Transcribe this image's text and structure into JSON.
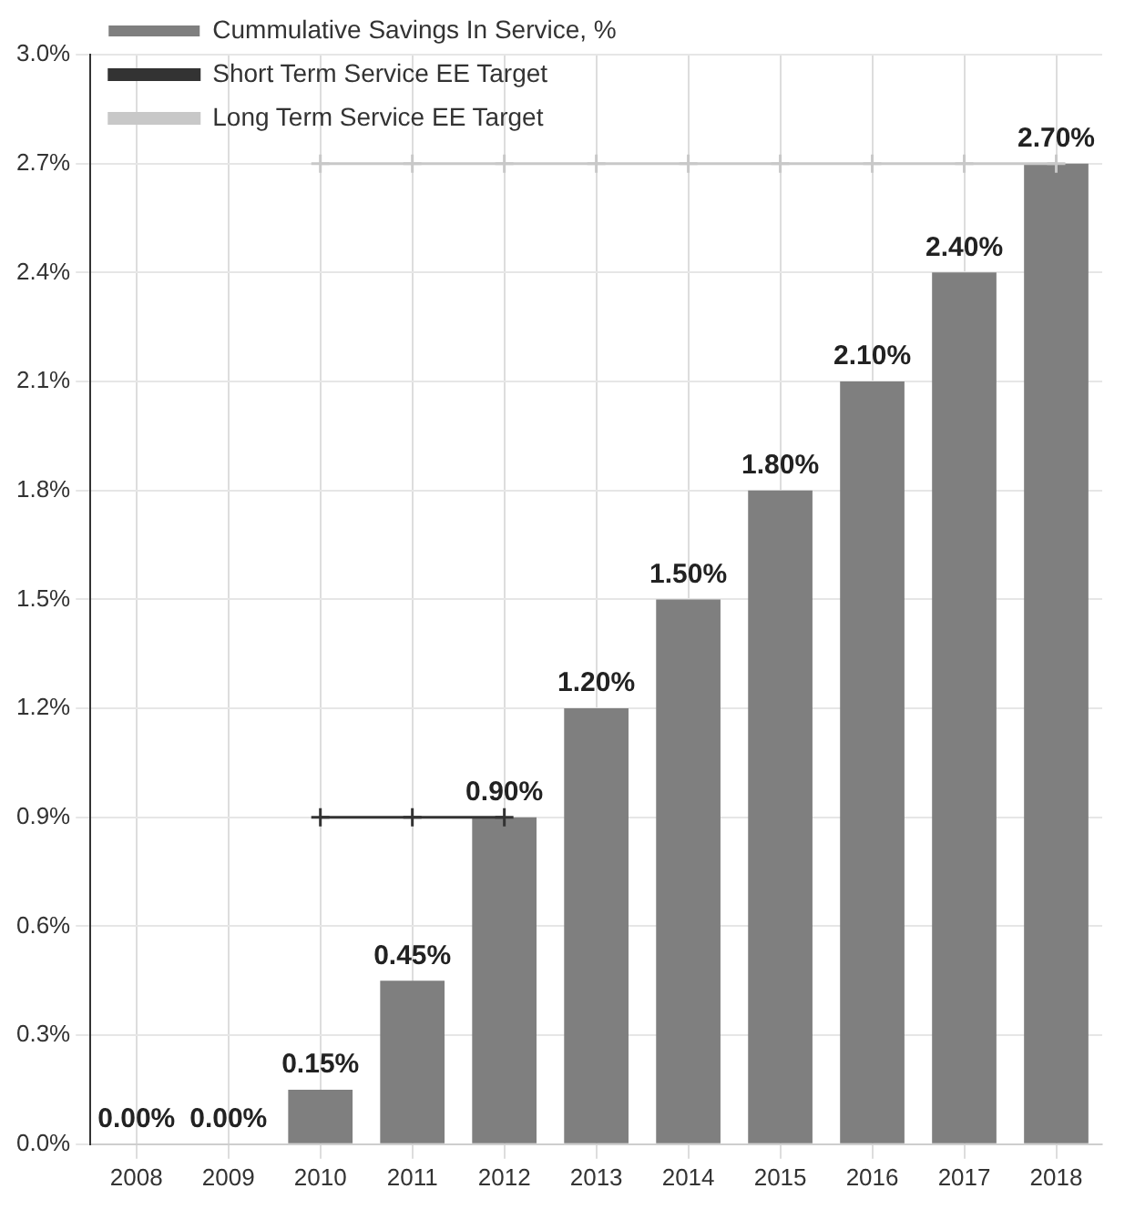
{
  "chart_data": {
    "type": "bar",
    "categories": [
      "2008",
      "2009",
      "2010",
      "2011",
      "2012",
      "2013",
      "2014",
      "2015",
      "2016",
      "2017",
      "2018"
    ],
    "series": [
      {
        "name": "Cummulative Savings In Service, %",
        "color": "#7f7f7f",
        "values": [
          0,
          0,
          0.15,
          0.45,
          0.9,
          1.2,
          1.5,
          1.8,
          2.1,
          2.4,
          2.7
        ],
        "value_labels": [
          "0.00%",
          "0.00%",
          "0.15%",
          "0.45%",
          "0.90%",
          "1.20%",
          "1.50%",
          "1.80%",
          "2.10%",
          "2.40%",
          "2.70%"
        ]
      },
      {
        "name": "Short Term Service EE Target",
        "type": "line",
        "color": "#333333",
        "values": [
          null,
          null,
          0.9,
          0.9,
          0.9,
          null,
          null,
          null,
          null,
          null,
          null
        ]
      },
      {
        "name": "Long Term Service EE Target",
        "type": "line",
        "color": "#c8c8c8",
        "values": [
          null,
          null,
          2.7,
          2.7,
          2.7,
          2.7,
          2.7,
          2.7,
          2.7,
          2.7,
          2.7
        ]
      }
    ],
    "ylim": [
      0,
      3
    ],
    "yticks": [
      {
        "value": 0,
        "label": "0.0%"
      },
      {
        "value": 0.3,
        "label": "0.3%"
      },
      {
        "value": 0.6,
        "label": "0.6%"
      },
      {
        "value": 0.9,
        "label": "0.9%"
      },
      {
        "value": 1.2,
        "label": "1.2%"
      },
      {
        "value": 1.5,
        "label": "1.5%"
      },
      {
        "value": 1.8,
        "label": "1.8%"
      },
      {
        "value": 2.1,
        "label": "2.1%"
      },
      {
        "value": 2.4,
        "label": "2.4%"
      },
      {
        "value": 2.7,
        "label": "2.7%"
      },
      {
        "value": 3,
        "label": "3.0%"
      }
    ],
    "grid": true,
    "legend": "top left",
    "marker": "cross",
    "line_style": "solid"
  }
}
